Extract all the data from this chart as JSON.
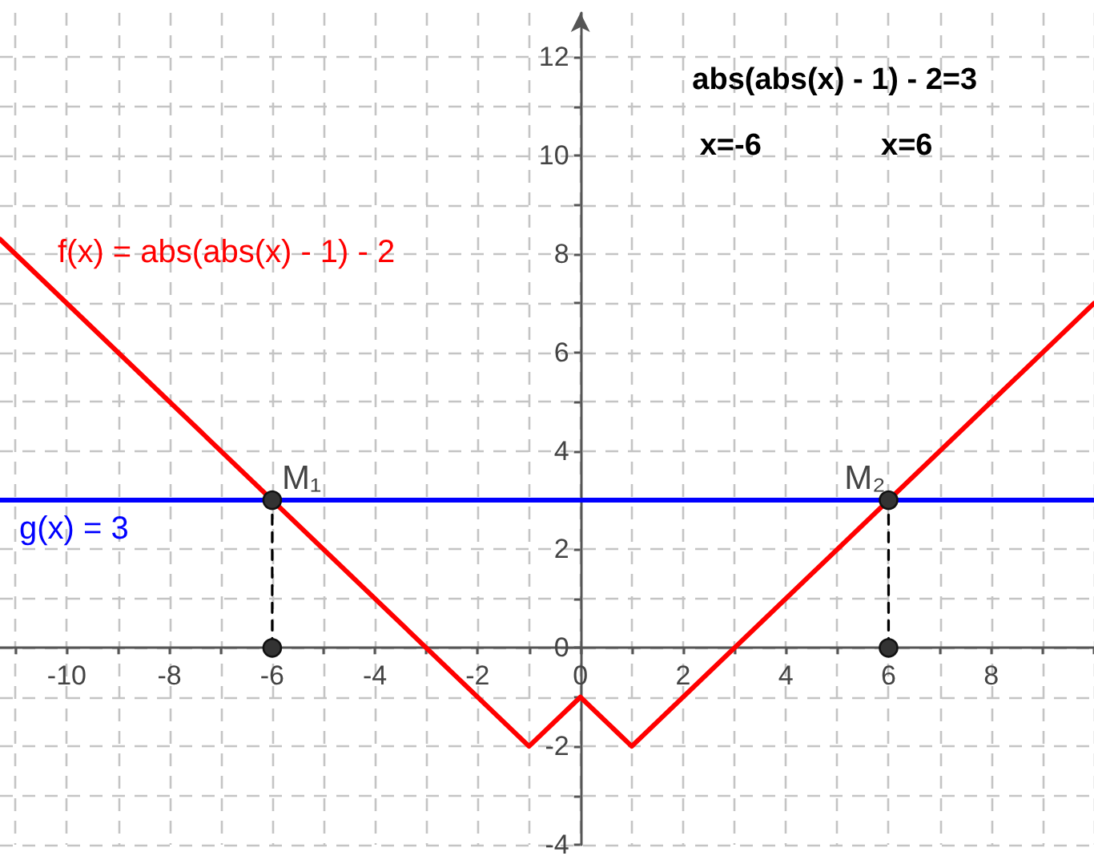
{
  "chart_data": {
    "type": "line",
    "xlim": [
      -11.3,
      10
    ],
    "ylim": [
      -4,
      12.9
    ],
    "xticks": [
      {
        "value": -11,
        "label": null
      },
      -10,
      {
        "value": -9,
        "label": null
      },
      -8,
      {
        "value": -7,
        "label": null
      },
      -6,
      {
        "value": -5,
        "label": null
      },
      -4,
      {
        "value": -3,
        "label": null
      },
      -2,
      {
        "value": -1,
        "label": null
      },
      0,
      {
        "value": 1,
        "label": null
      },
      2,
      {
        "value": 3,
        "label": null
      },
      4,
      {
        "value": 5,
        "label": null
      },
      6,
      {
        "value": 7,
        "label": null
      },
      8,
      {
        "value": 9,
        "label": null
      },
      {
        "value": 10,
        "label": null
      }
    ],
    "yticks": [
      -4,
      {
        "value": -3,
        "label": null
      },
      -2,
      {
        "value": -1,
        "label": null
      },
      0,
      {
        "value": 1,
        "label": null
      },
      2,
      {
        "value": 3,
        "label": null
      },
      4,
      {
        "value": 5,
        "label": null
      },
      6,
      {
        "value": 7,
        "label": null
      },
      8,
      {
        "value": 9,
        "label": null
      },
      10,
      {
        "value": 11,
        "label": null
      },
      12
    ],
    "grid": true,
    "annotations": [
      "abs(abs(x) - 1) - 2=3",
      "x=-6",
      "x=6",
      {
        "text": "M₁",
        "x": -6,
        "y": 3
      },
      {
        "text": "M₂",
        "x": 6,
        "y": 3
      }
    ],
    "series": [
      {
        "name": "f(x) = abs(abs(x) - 1) - 2",
        "color": "#ff0000",
        "x": [
          -11.3,
          -1,
          0,
          1,
          10
        ],
        "values": [
          8.3,
          -2,
          -1,
          -2,
          7
        ]
      },
      {
        "name": "g(x) = 3",
        "color": "#0000ff",
        "x": [
          -11.3,
          10
        ],
        "values": [
          3,
          3
        ]
      },
      {
        "type": "line",
        "color": "#000000",
        "line_style": "dashed",
        "x": [
          -6,
          -6
        ],
        "values": [
          0,
          3
        ]
      },
      {
        "type": "line",
        "color": "#000000",
        "line_style": "dashed",
        "x": [
          6,
          6
        ],
        "values": [
          0,
          3
        ]
      },
      {
        "type": "scatter",
        "color": "#333333",
        "marker": "circle",
        "x": [
          -6,
          -6,
          6,
          6
        ],
        "values": [
          3,
          0,
          3,
          0
        ]
      }
    ]
  }
}
